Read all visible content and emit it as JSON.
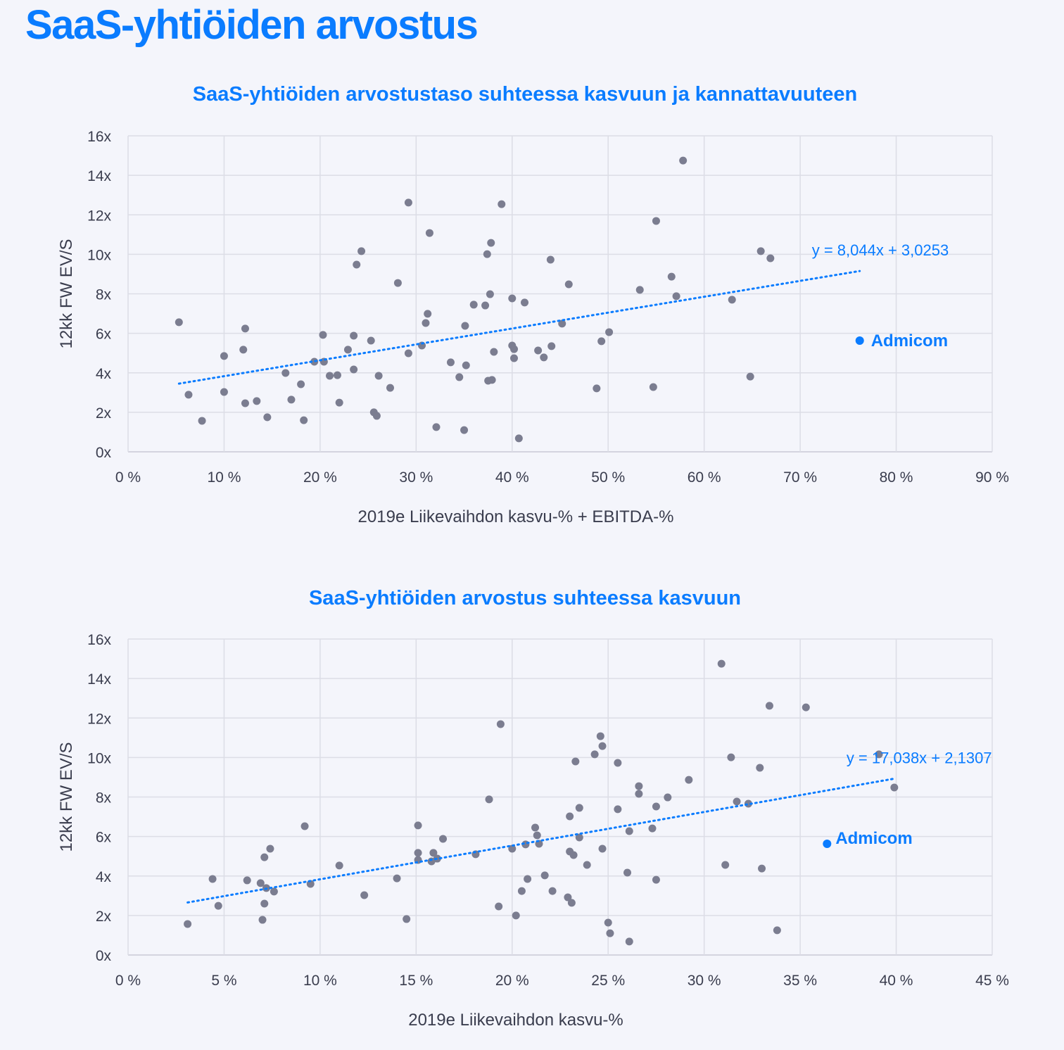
{
  "page_title": "SaaS-yhtiöiden arvostus",
  "colors": {
    "accent": "#0a7cff",
    "points": "#7b7d90",
    "grid": "#dcdde6",
    "background": "#f4f5fb"
  },
  "chart_data": [
    {
      "type": "scatter",
      "title": "SaaS-yhtiöiden arvostustaso suhteessa kasvuun ja kannattavuuteen",
      "xlabel": "2019e Liikevaihdon kasvu-% + EBITDA-%",
      "ylabel": "12kk FW EV/S",
      "xlim": [
        0,
        90
      ],
      "ylim": [
        0,
        16
      ],
      "xticks": [
        "0 %",
        "10 %",
        "20 %",
        "30 %",
        "40 %",
        "50 %",
        "60 %",
        "70 %",
        "80 %",
        "90 %"
      ],
      "yticks": [
        "0x",
        "2x",
        "4x",
        "6x",
        "8x",
        "10x",
        "12x",
        "14x",
        "16x"
      ],
      "grid": true,
      "points": [
        [
          5.3,
          6.56
        ],
        [
          6.3,
          2.89
        ],
        [
          7.7,
          1.57
        ],
        [
          10.0,
          4.85
        ],
        [
          10.0,
          3.03
        ],
        [
          12.0,
          5.17
        ],
        [
          12.2,
          6.24
        ],
        [
          12.2,
          2.46
        ],
        [
          13.4,
          2.57
        ],
        [
          14.5,
          1.75
        ],
        [
          16.4,
          3.99
        ],
        [
          17.0,
          2.64
        ],
        [
          18.0,
          3.42
        ],
        [
          18.3,
          1.6
        ],
        [
          19.4,
          4.56
        ],
        [
          20.4,
          4.56
        ],
        [
          20.3,
          5.92
        ],
        [
          21.0,
          3.85
        ],
        [
          21.8,
          3.88
        ],
        [
          22.0,
          2.49
        ],
        [
          22.9,
          5.17
        ],
        [
          23.5,
          4.17
        ],
        [
          23.5,
          5.88
        ],
        [
          23.8,
          9.48
        ],
        [
          24.3,
          10.16
        ],
        [
          25.3,
          5.63
        ],
        [
          25.6,
          2.0
        ],
        [
          25.9,
          1.82
        ],
        [
          26.1,
          3.85
        ],
        [
          27.3,
          3.24
        ],
        [
          28.1,
          8.55
        ],
        [
          29.2,
          12.62
        ],
        [
          29.2,
          4.99
        ],
        [
          30.6,
          5.38
        ],
        [
          31.0,
          6.52
        ],
        [
          31.2,
          6.99
        ],
        [
          31.4,
          11.08
        ],
        [
          32.1,
          1.25
        ],
        [
          33.6,
          4.53
        ],
        [
          34.5,
          3.78
        ],
        [
          35.0,
          1.1
        ],
        [
          35.1,
          6.38
        ],
        [
          35.2,
          4.38
        ],
        [
          36.0,
          7.45
        ],
        [
          37.2,
          7.41
        ],
        [
          37.4,
          10.01
        ],
        [
          37.5,
          3.6
        ],
        [
          37.7,
          7.98
        ],
        [
          37.8,
          10.58
        ],
        [
          37.9,
          3.64
        ],
        [
          38.1,
          5.06
        ],
        [
          38.9,
          12.54
        ],
        [
          40.0,
          5.38
        ],
        [
          40.0,
          7.77
        ],
        [
          40.2,
          5.2
        ],
        [
          40.2,
          4.74
        ],
        [
          40.7,
          0.68
        ],
        [
          41.3,
          7.56
        ],
        [
          42.7,
          5.13
        ],
        [
          43.3,
          4.78
        ],
        [
          44.0,
          9.73
        ],
        [
          44.1,
          5.35
        ],
        [
          45.2,
          6.49
        ],
        [
          45.9,
          8.48
        ],
        [
          48.8,
          3.21
        ],
        [
          49.3,
          5.6
        ],
        [
          50.1,
          6.06
        ],
        [
          53.3,
          8.2
        ],
        [
          54.7,
          3.28
        ],
        [
          55.0,
          11.69
        ],
        [
          56.6,
          8.87
        ],
        [
          57.1,
          7.88
        ],
        [
          57.8,
          14.75
        ],
        [
          62.9,
          7.7
        ],
        [
          64.8,
          3.81
        ],
        [
          65.9,
          10.16
        ],
        [
          66.9,
          9.8
        ]
      ],
      "highlight": {
        "label": "Admicom",
        "x": 76.2,
        "y": 5.63
      },
      "trendline": {
        "label": "y = 8,044x + 3,0253",
        "slope": 8.044,
        "intercept": 3.0253,
        "x_range": [
          5.3,
          76.2
        ]
      }
    },
    {
      "type": "scatter",
      "title": "SaaS-yhtiöiden arvostus suhteessa kasvuun",
      "xlabel": "2019e Liikevaihdon kasvu-%",
      "ylabel": "12kk FW EV/S",
      "xlim": [
        0,
        45
      ],
      "ylim": [
        0,
        16
      ],
      "xticks": [
        "0 %",
        "5 %",
        "10 %",
        "15 %",
        "20 %",
        "25 %",
        "30 %",
        "35 %",
        "40 %",
        "45 %"
      ],
      "yticks": [
        "0x",
        "2x",
        "4x",
        "6x",
        "8x",
        "10x",
        "12x",
        "14x",
        "16x"
      ],
      "grid": true,
      "points": [
        [
          3.1,
          1.57
        ],
        [
          4.4,
          3.85
        ],
        [
          4.7,
          2.49
        ],
        [
          6.2,
          3.78
        ],
        [
          6.9,
          3.64
        ],
        [
          7.0,
          1.78
        ],
        [
          7.1,
          2.6
        ],
        [
          7.1,
          4.95
        ],
        [
          7.2,
          3.39
        ],
        [
          7.4,
          5.38
        ],
        [
          7.6,
          3.21
        ],
        [
          9.2,
          6.52
        ],
        [
          9.5,
          3.6
        ],
        [
          11.0,
          4.53
        ],
        [
          12.3,
          3.03
        ],
        [
          14.0,
          3.88
        ],
        [
          14.5,
          1.82
        ],
        [
          15.1,
          6.56
        ],
        [
          15.1,
          5.17
        ],
        [
          15.1,
          4.81
        ],
        [
          15.8,
          4.74
        ],
        [
          15.9,
          5.17
        ],
        [
          16.1,
          4.88
        ],
        [
          16.4,
          5.88
        ],
        [
          18.1,
          5.1
        ],
        [
          18.8,
          7.88
        ],
        [
          19.3,
          2.46
        ],
        [
          19.4,
          11.69
        ],
        [
          20.0,
          5.38
        ],
        [
          20.2,
          2.0
        ],
        [
          20.5,
          3.24
        ],
        [
          20.7,
          5.6
        ],
        [
          20.8,
          3.85
        ],
        [
          21.2,
          6.45
        ],
        [
          21.3,
          6.06
        ],
        [
          21.4,
          5.63
        ],
        [
          21.7,
          4.03
        ],
        [
          22.1,
          3.24
        ],
        [
          22.9,
          2.92
        ],
        [
          23.0,
          7.02
        ],
        [
          23.0,
          5.24
        ],
        [
          23.1,
          2.64
        ],
        [
          23.2,
          5.06
        ],
        [
          23.3,
          9.8
        ],
        [
          23.5,
          5.95
        ],
        [
          23.5,
          7.45
        ],
        [
          23.9,
          4.56
        ],
        [
          24.3,
          10.16
        ],
        [
          24.6,
          11.08
        ],
        [
          24.7,
          5.38
        ],
        [
          24.7,
          10.58
        ],
        [
          25.0,
          1.64
        ],
        [
          25.1,
          1.1
        ],
        [
          25.5,
          9.73
        ],
        [
          25.5,
          7.38
        ],
        [
          26.0,
          4.17
        ],
        [
          26.1,
          6.27
        ],
        [
          26.1,
          0.68
        ],
        [
          26.6,
          8.55
        ],
        [
          26.6,
          8.16
        ],
        [
          27.3,
          6.41
        ],
        [
          27.5,
          7.52
        ],
        [
          27.5,
          3.81
        ],
        [
          28.1,
          7.98
        ],
        [
          29.2,
          8.87
        ],
        [
          30.9,
          14.75
        ],
        [
          31.1,
          4.56
        ],
        [
          31.4,
          10.01
        ],
        [
          31.7,
          7.77
        ],
        [
          32.3,
          7.66
        ],
        [
          32.9,
          9.48
        ],
        [
          33.0,
          4.38
        ],
        [
          33.4,
          12.62
        ],
        [
          33.8,
          1.25
        ],
        [
          35.3,
          12.54
        ],
        [
          39.1,
          10.16
        ],
        [
          39.9,
          8.48
        ]
      ],
      "highlight": {
        "label": "Admicom",
        "x": 36.4,
        "y": 5.63
      },
      "trendline": {
        "label": "y = 17,038x + 2,1307",
        "slope": 17.038,
        "intercept": 2.1307,
        "x_range": [
          3.1,
          39.9
        ]
      }
    }
  ]
}
